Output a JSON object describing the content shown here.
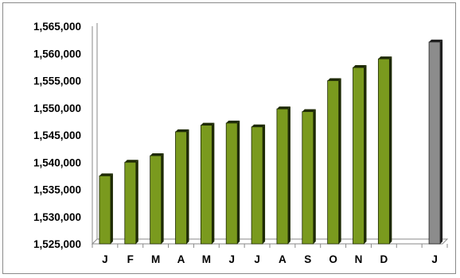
{
  "chart_data": {
    "type": "bar",
    "title": "",
    "xlabel": "",
    "ylabel": "",
    "categories": [
      "J",
      "F",
      "M",
      "A",
      "M",
      "J",
      "J",
      "A",
      "S",
      "O",
      "N",
      "D",
      "",
      "J"
    ],
    "values": [
      1537500,
      1540000,
      1541200,
      1545600,
      1546800,
      1547200,
      1546500,
      1549800,
      1549300,
      1555000,
      1557400,
      1559000,
      null,
      1562100
    ],
    "highlight_index": 13,
    "ylim": [
      1525000,
      1565000
    ],
    "yticks": [
      1525000,
      1530000,
      1535000,
      1540000,
      1545000,
      1550000,
      1555000,
      1560000,
      1565000
    ],
    "ytick_labels": [
      "1,525,000",
      "1,530,000",
      "1,535,000",
      "1,540,000",
      "1,545,000",
      "1,550,000",
      "1,555,000",
      "1,560,000",
      "1,565,000"
    ],
    "grid": false,
    "legend": "none",
    "colors": {
      "bar": "#7a9a1e",
      "bar_side": "#1e2a05",
      "highlight": "#8c8c8c",
      "highlight_side": "#202020",
      "axis": "#8a8a8a"
    }
  }
}
